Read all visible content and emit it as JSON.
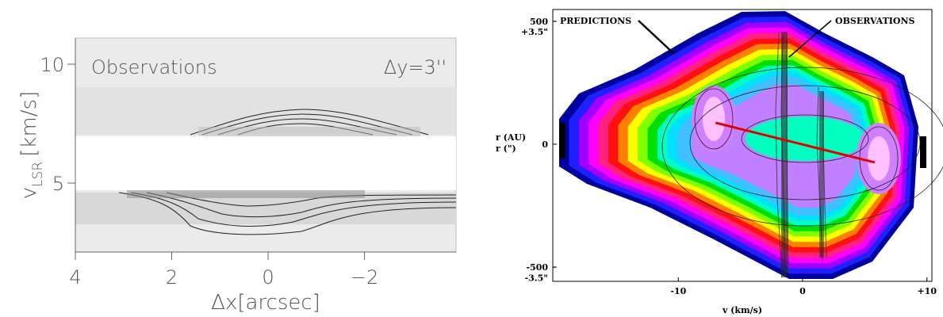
{
  "chart_data": [
    {
      "type": "contour",
      "annotations": [
        "Observations",
        "Δy=3''"
      ],
      "xlabel": "Δx[arcsec]",
      "ylabel": {
        "symbol": "v",
        "subscript": "LSR",
        "unit": "[km/s]"
      },
      "xlim": [
        4,
        -3.9
      ],
      "xticks": [
        4,
        2,
        0,
        {
          "value": -2,
          "label": "−2"
        }
      ],
      "ylim": [
        2.1,
        11.1
      ],
      "yticks": [
        5,
        10
      ]
    },
    {
      "type": "heatmap",
      "annotations": [
        "PREDICTIONS",
        "OBSERVATIONS"
      ],
      "xlabel": "v (km/s)",
      "ylabel": "r (AU)",
      "y2label": "r (\")",
      "xlim": [
        -20.1,
        10.4
      ],
      "xticks": [
        -10,
        0,
        {
          "value": 10,
          "label": "+10"
        }
      ],
      "ylim": [
        -558,
        548
      ],
      "yticks": [
        500,
        0,
        -500
      ],
      "y2lim": [
        -3.9,
        3.84
      ],
      "y2ticks": [
        {
          "value": 3.5,
          "label": "+3.5\""
        },
        {
          "value": -3.5,
          "label": "-3.5\""
        }
      ],
      "line": {
        "x": [
          -7,
          5.8
        ],
        "values": [
          87,
          -74
        ],
        "color": "#e00000"
      }
    }
  ]
}
